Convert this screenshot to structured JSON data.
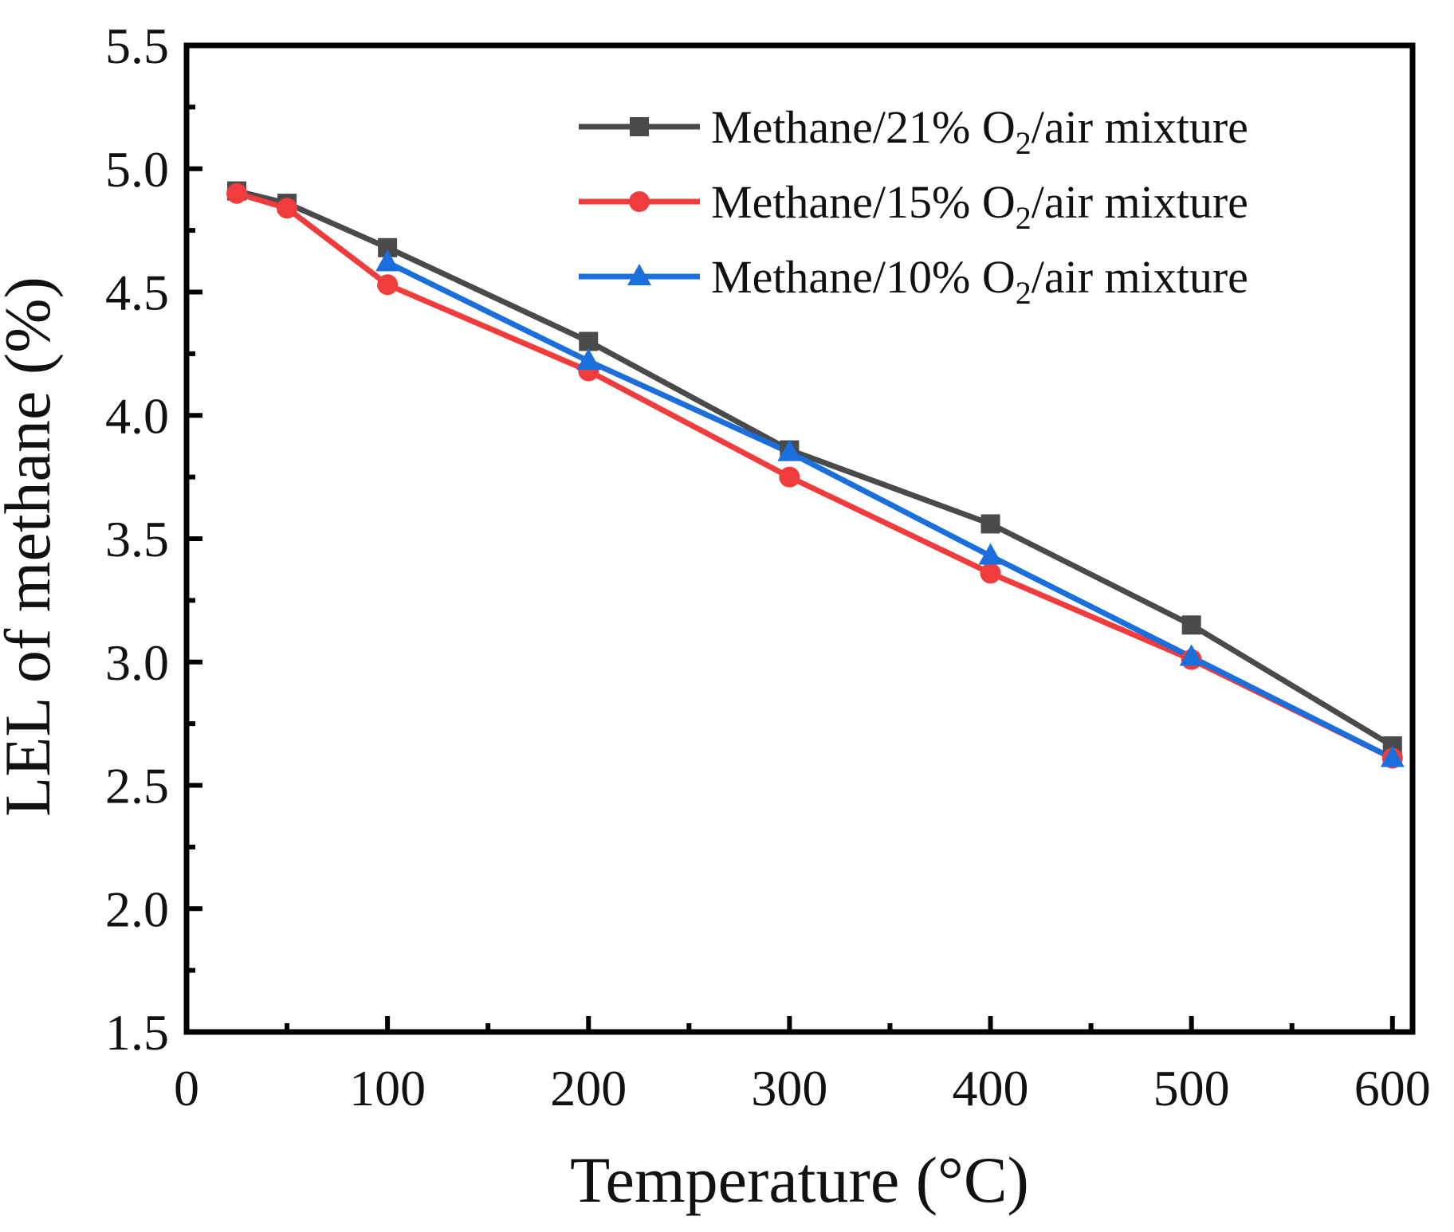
{
  "chart_data": {
    "type": "line",
    "xlabel": "Temperature (°C)",
    "ylabel": "LEL of methane (%)",
    "xlim": [
      0,
      610
    ],
    "ylim": [
      1.5,
      5.5
    ],
    "xticks": [
      0,
      100,
      200,
      300,
      400,
      500,
      600
    ],
    "xtick_labels": [
      "0",
      "100",
      "200",
      "300",
      "400",
      "500",
      "600"
    ],
    "xminor_step": 50,
    "yticks": [
      1.5,
      2.0,
      2.5,
      3.0,
      3.5,
      4.0,
      4.5,
      5.0,
      5.5
    ],
    "ytick_labels": [
      "1.5",
      "2.0",
      "2.5",
      "3.0",
      "3.5",
      "4.0",
      "4.5",
      "5.0",
      "5.5"
    ],
    "yminor_step": 0.25,
    "grid": false,
    "legend_position": "top-right",
    "series": [
      {
        "name": "Methane/21% O2/air mixture",
        "legend_prefix": "Methane/21% O",
        "legend_subscript": "2",
        "legend_suffix": "/air mixture",
        "color": "#4a4a4a",
        "marker": "square",
        "x": [
          25,
          50,
          100,
          200,
          300,
          400,
          500,
          600
        ],
        "y": [
          4.91,
          4.86,
          4.68,
          4.3,
          3.86,
          3.56,
          3.15,
          2.66
        ]
      },
      {
        "name": "Methane/15% O2/air mixture",
        "legend_prefix": "Methane/15% O",
        "legend_subscript": "2",
        "legend_suffix": "/air mixture",
        "color": "#f03c3c",
        "marker": "circle",
        "x": [
          25,
          50,
          100,
          200,
          300,
          400,
          500,
          600
        ],
        "y": [
          4.9,
          4.84,
          4.53,
          4.18,
          3.75,
          3.36,
          3.01,
          2.61
        ]
      },
      {
        "name": "Methane/10% O2/air mixture",
        "legend_prefix": "Methane/10% O",
        "legend_subscript": "2",
        "legend_suffix": "/air mixture",
        "color": "#1a6fdc",
        "marker": "triangle",
        "x": [
          100,
          200,
          300,
          400,
          500,
          600
        ],
        "y": [
          4.62,
          4.22,
          3.85,
          3.43,
          3.02,
          2.61
        ]
      }
    ]
  }
}
